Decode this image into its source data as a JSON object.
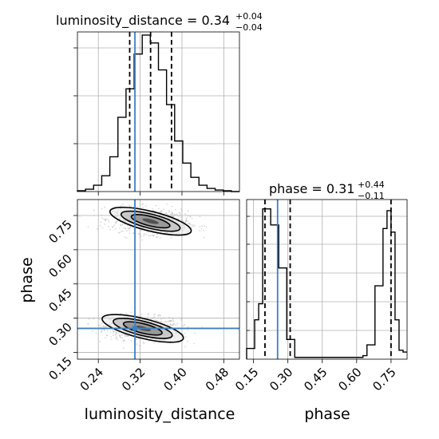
{
  "colors": {
    "truth": "#3f7fbf",
    "hist": "#000000",
    "grid": "#b0b0b0",
    "points": "#b8b8b8"
  },
  "titles": {
    "luminosity_distance": {
      "text": "luminosity_distance = 0.34",
      "plus": "+0.04",
      "minus": "−0.04"
    },
    "phase": {
      "text": "phase = 0.31",
      "plus": "+0.44",
      "minus": "−0.11"
    }
  },
  "chart_data": {
    "type": "corner",
    "parameters": [
      "luminosity_distance",
      "phase"
    ],
    "axes": {
      "luminosity_distance": {
        "xlim": [
          0.2,
          0.51
        ],
        "ticks": [
          0.24,
          0.32,
          0.4,
          0.48
        ],
        "tick_labels": [
          "0.24",
          "0.32",
          "0.40",
          "0.48"
        ],
        "label": "luminosity_distance"
      },
      "phase": {
        "xlim": [
          0.12,
          0.82
        ],
        "ticks": [
          0.15,
          0.3,
          0.45,
          0.6,
          0.75
        ],
        "tick_labels": [
          "0.15",
          "0.30",
          "0.45",
          "0.60",
          "0.75"
        ],
        "label": "phase"
      }
    },
    "truths": {
      "luminosity_distance": 0.31,
      "phase": 0.255
    },
    "marginals": {
      "luminosity_distance": {
        "bin_edges": [
          0.2,
          0.2155,
          0.231,
          0.2465,
          0.262,
          0.2775,
          0.293,
          0.3085,
          0.324,
          0.3395,
          0.355,
          0.3705,
          0.386,
          0.4015,
          0.417,
          0.4325,
          0.448,
          0.4635,
          0.479,
          0.4945,
          0.51
        ],
        "counts": [
          0.5,
          1.5,
          4,
          10,
          22,
          47,
          65,
          87,
          99,
          94,
          77,
          55,
          32,
          18,
          9,
          4,
          2,
          1,
          0.5,
          0
        ],
        "quantiles": [
          0.3,
          0.34,
          0.38
        ]
      },
      "phase": {
        "bin_edges": [
          0.12,
          0.1375,
          0.155,
          0.1725,
          0.19,
          0.2075,
          0.225,
          0.2425,
          0.26,
          0.2775,
          0.295,
          0.3125,
          0.33,
          0.3475,
          0.365,
          0.3825,
          0.4,
          0.4175,
          0.435,
          0.4525,
          0.47,
          0.4875,
          0.505,
          0.5225,
          0.54,
          0.5575,
          0.575,
          0.5925,
          0.61,
          0.6275,
          0.645,
          0.6625,
          0.68,
          0.6975,
          0.715,
          0.7325,
          0.75,
          0.7675,
          0.785,
          0.8025,
          0.82
        ],
        "counts": [
          6,
          6,
          22,
          31,
          84,
          84,
          75,
          75,
          51,
          51,
          11,
          11,
          1,
          1,
          1,
          1,
          1,
          1,
          1,
          1,
          1,
          1,
          1,
          1,
          1,
          1,
          1,
          1,
          1,
          2,
          8,
          8,
          41,
          41,
          73,
          83,
          71,
          22,
          5,
          4
        ],
        "quantiles": [
          0.2,
          0.31,
          0.75
        ]
      }
    },
    "joint": {
      "x": "luminosity_distance",
      "y": "phase",
      "modes": [
        {
          "center": [
            0.325,
            0.255
          ],
          "spread": [
            0.04,
            0.03
          ],
          "tilt": -0.13
        },
        {
          "center": [
            0.34,
            0.725
          ],
          "spread": [
            0.04,
            0.03
          ],
          "tilt": -0.13
        }
      ],
      "contours": "1σ, 2σ, 3σ levels per mode"
    }
  }
}
